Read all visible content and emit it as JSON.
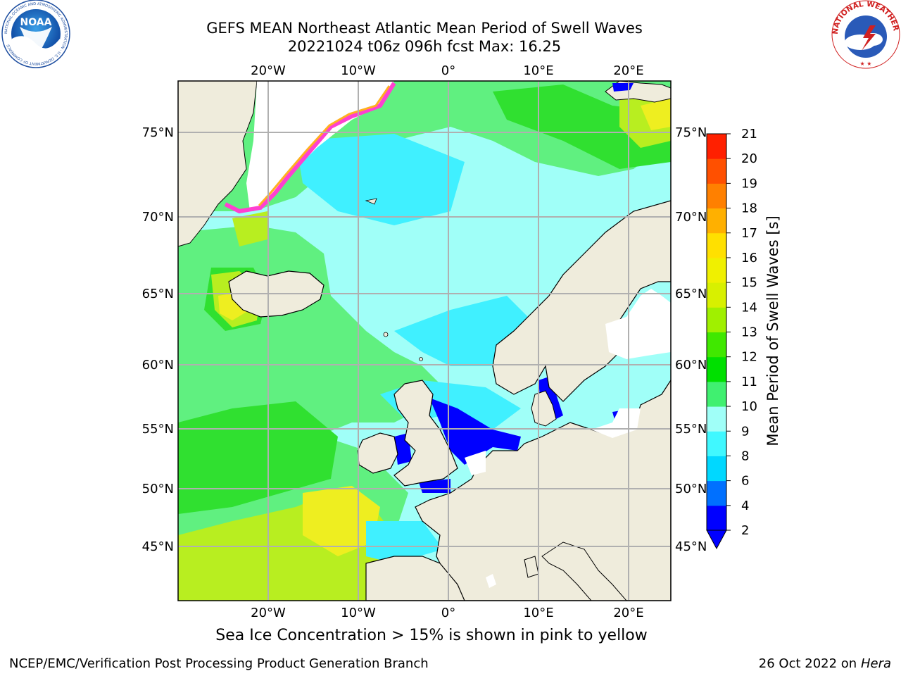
{
  "title": {
    "line1": "GEFS MEAN Northeast Atlantic Mean Period of Swell Waves",
    "line2": "20221024 t06z 096h fcst   Max: 16.25"
  },
  "map": {
    "lon_ticks_top": [
      "20°W",
      "10°W",
      "0°",
      "10°E",
      "20°E"
    ],
    "lon_ticks_bottom": [
      "20°W",
      "10°W",
      "0°",
      "10°E",
      "20°E"
    ],
    "lat_ticks_left": [
      "75°N",
      "70°N",
      "65°N",
      "60°N",
      "55°N",
      "50°N",
      "45°N"
    ],
    "lat_ticks_right": [
      "75°N",
      "70°N",
      "65°N",
      "60°N",
      "55°N",
      "50°N",
      "45°N"
    ],
    "colors": {
      "land": "#efecdc",
      "ice": "#ffffff",
      "grid": "#b0b0b0"
    }
  },
  "colorbar": {
    "label": "Mean Period of Swell Waves [s]",
    "ticks": [
      "2",
      "4",
      "6",
      "8",
      "9",
      "10",
      "11",
      "12",
      "13",
      "14",
      "15",
      "16",
      "17",
      "18",
      "19",
      "20",
      "21"
    ],
    "colors": [
      "#0000ff",
      "#0070ff",
      "#00d8ff",
      "#40f8ff",
      "#a0fff8",
      "#40f070",
      "#00e000",
      "#40e800",
      "#a0f000",
      "#d8f000",
      "#f0f000",
      "#ffe000",
      "#ffb000",
      "#ff8000",
      "#ff5000",
      "#ff2000"
    ],
    "extend_min": true
  },
  "caption": "Sea Ice Concentration > 15% is shown in pink to yellow",
  "footer": {
    "left": "NCEP/EMC/Verification Post Processing Product Generation Branch",
    "right_date": "26 Oct 2022 on ",
    "right_machine": "Hera"
  },
  "logos": {
    "noaa_text": "NOAA",
    "noaa_ring": "NATIONAL OCEANIC AND ATMOSPHERIC ADMINISTRATION · U.S. DEPARTMENT OF COMMERCE",
    "nws_ring": "NATIONAL WEATHER SERVICE"
  }
}
